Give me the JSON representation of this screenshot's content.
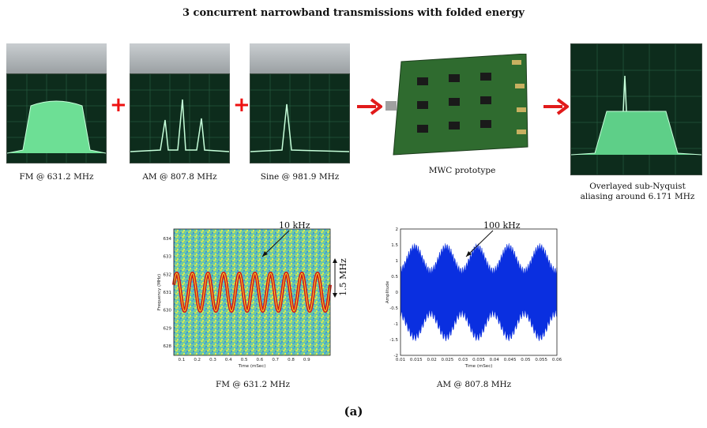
{
  "title": "3 concurrent narrowband transmissions with folded energy",
  "panels": {
    "fm": {
      "caption": "FM @ 631.2 MHz"
    },
    "am": {
      "caption": "AM @ 807.8 MHz"
    },
    "sine": {
      "caption": "Sine @ 981.9 MHz"
    },
    "mwc": {
      "caption": "MWC prototype"
    },
    "overlay": {
      "caption_line1": "Overlayed sub-Nyquist",
      "caption_line2": "aliasing around 6.171 MHz"
    }
  },
  "spectrogram": {
    "caption": "FM @ 631.2 MHz",
    "xlabel": "Time (mSec)",
    "ylabel": "Frequency (MHz)",
    "xticks": [
      "0.1",
      "0.2",
      "0.3",
      "0.4",
      "0.5",
      "0.6",
      "0.7",
      "0.8",
      "0.9"
    ],
    "yticks": [
      "634",
      "633",
      "632",
      "631",
      "630",
      "629",
      "628"
    ],
    "annotation_freq": "10 kHz",
    "annotation_span": "1.5 MHz"
  },
  "am_time": {
    "caption": "AM @ 807.8 MHz",
    "xlabel": "Time (mSec)",
    "ylabel": "Amplitude",
    "xticks": [
      "0.01",
      "0.015",
      "0.02",
      "0.025",
      "0.03",
      "0.035",
      "0.04",
      "0.045",
      "0.05",
      "0.055",
      "0.06"
    ],
    "yticks": [
      "2",
      "1.5",
      "1",
      "0.5",
      "0",
      "-0.5",
      "-1",
      "-1.5",
      "-2"
    ],
    "annotation_freq": "100 kHz"
  },
  "figure_label": "(a)",
  "colors": {
    "arrow": "#e11a1a",
    "scope_bg": "#0d2c1c",
    "trace": "#b8ffd0",
    "am_signal": "#0a2fe0",
    "fm_trace": "#d41515"
  }
}
